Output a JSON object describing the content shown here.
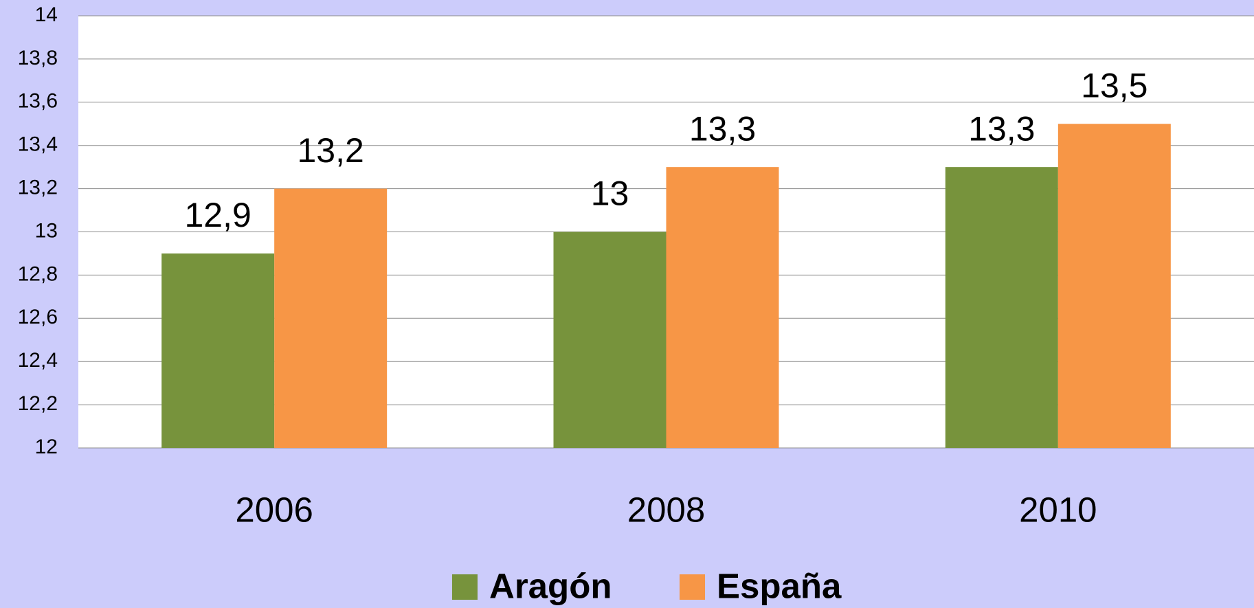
{
  "chart_data": {
    "type": "bar",
    "categories": [
      "2006",
      "2008",
      "2010"
    ],
    "series": [
      {
        "name": "Aragón",
        "color": "#77933c",
        "values": [
          12.9,
          13,
          13.3
        ],
        "value_labels": [
          "12,9",
          "13",
          "13,3"
        ]
      },
      {
        "name": "España",
        "color": "#f79646",
        "values": [
          13.2,
          13.3,
          13.5
        ],
        "value_labels": [
          "13,2",
          "13,3",
          "13,5"
        ]
      }
    ],
    "ylim": [
      12,
      14
    ],
    "yticks": [
      12,
      {
        "value": 12.2,
        "label": "12,2"
      },
      {
        "value": 12.4,
        "label": "12,4"
      },
      {
        "value": 12.6,
        "label": "12,6"
      },
      {
        "value": 12.8,
        "label": "12,8"
      },
      13,
      {
        "value": 13.2,
        "label": "13,2"
      },
      {
        "value": 13.4,
        "label": "13,4"
      },
      {
        "value": 13.6,
        "label": "13,6"
      },
      {
        "value": 13.8,
        "label": "13,8"
      },
      14
    ],
    "grid": true,
    "legend": "bottom"
  }
}
